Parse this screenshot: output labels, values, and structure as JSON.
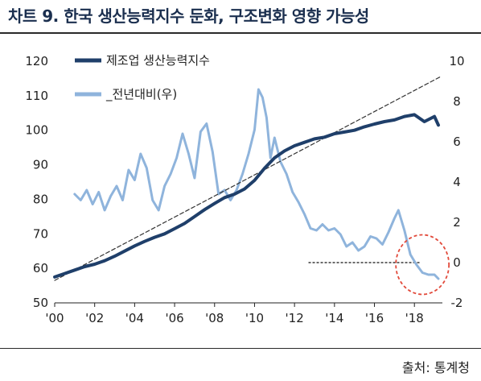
{
  "header": {
    "title": "차트 9. 한국 생산능력지수 둔화, 구조변화 영향 가능성"
  },
  "footer": {
    "source": "출처: 통계청"
  },
  "colors": {
    "index": "#1f3f6a",
    "yoy": "#8fb4dc",
    "trend": "#333333",
    "circle": "#e24a3b",
    "zero_line": "#111111"
  },
  "chart_data": {
    "type": "line",
    "title": "",
    "xlabel": "",
    "ylabel": "",
    "x_ticks": [
      "'00",
      "'02",
      "'04",
      "'06",
      "'08",
      "'10",
      "'12",
      "'14",
      "'16",
      "'18"
    ],
    "xlim": [
      2000,
      2019.4
    ],
    "ylim_left": [
      50,
      120
    ],
    "ylim_right": [
      -2,
      10
    ],
    "left_ticks": [
      "120",
      "110",
      "100",
      "90",
      "80",
      "70",
      "60",
      "50"
    ],
    "right_ticks": [
      "10",
      "8",
      "6",
      "4",
      "2",
      "0",
      "-2"
    ],
    "legend_position": "top-left",
    "annotations": [
      "dashed linear trend line",
      "dashed zero reference line (2012.7–2018.3)",
      "red dashed circle highlighting 2018–2019"
    ],
    "series": [
      {
        "name": "제조업 생산능력지수",
        "axis": "left",
        "x": [
          2000.0,
          2000.5,
          2001.0,
          2001.5,
          2002.0,
          2002.5,
          2003.0,
          2003.5,
          2004.0,
          2004.5,
          2005.0,
          2005.5,
          2006.0,
          2006.5,
          2007.0,
          2007.5,
          2008.0,
          2008.5,
          2009.0,
          2009.5,
          2010.0,
          2010.5,
          2011.0,
          2011.5,
          2012.0,
          2012.5,
          2013.0,
          2013.5,
          2014.0,
          2014.5,
          2015.0,
          2015.5,
          2016.0,
          2016.5,
          2017.0,
          2017.5,
          2018.0,
          2018.5,
          2019.0,
          2019.2
        ],
        "y": [
          57.5,
          58.5,
          59.5,
          60.5,
          61.2,
          62.2,
          63.5,
          65.0,
          66.5,
          67.8,
          69.0,
          70.0,
          71.5,
          73.0,
          75.0,
          77.0,
          78.8,
          80.5,
          81.5,
          83.0,
          85.5,
          89.0,
          92.0,
          94.0,
          95.5,
          96.5,
          97.5,
          98.0,
          99.0,
          99.5,
          100.0,
          101.0,
          101.8,
          102.5,
          103.0,
          104.0,
          104.5,
          102.5,
          104.0,
          101.5
        ]
      },
      {
        "name": "_전년대비(우)",
        "axis": "right",
        "x": [
          2001.0,
          2001.3,
          2001.6,
          2001.9,
          2002.2,
          2002.5,
          2002.8,
          2003.1,
          2003.4,
          2003.7,
          2004.0,
          2004.3,
          2004.6,
          2004.9,
          2005.2,
          2005.5,
          2005.8,
          2006.1,
          2006.4,
          2006.7,
          2007.0,
          2007.3,
          2007.6,
          2007.9,
          2008.2,
          2008.5,
          2008.8,
          2009.1,
          2009.4,
          2009.7,
          2010.0,
          2010.2,
          2010.4,
          2010.6,
          2010.8,
          2011.0,
          2011.3,
          2011.6,
          2011.9,
          2012.2,
          2012.5,
          2012.8,
          2013.1,
          2013.4,
          2013.7,
          2014.0,
          2014.3,
          2014.6,
          2014.9,
          2015.2,
          2015.5,
          2015.8,
          2016.1,
          2016.4,
          2016.7,
          2017.0,
          2017.2,
          2017.5,
          2017.8,
          2018.1,
          2018.4,
          2018.7,
          2019.0,
          2019.2
        ],
        "y": [
          3.4,
          3.1,
          3.6,
          2.9,
          3.5,
          2.6,
          3.3,
          3.8,
          3.1,
          4.6,
          4.1,
          5.4,
          4.7,
          3.1,
          2.6,
          3.8,
          4.4,
          5.2,
          6.4,
          5.4,
          4.2,
          6.5,
          6.9,
          5.5,
          3.4,
          3.6,
          3.1,
          3.6,
          4.4,
          5.4,
          6.6,
          8.6,
          8.2,
          7.2,
          5.2,
          6.2,
          5.0,
          4.4,
          3.5,
          3.0,
          2.4,
          1.7,
          1.6,
          1.9,
          1.6,
          1.7,
          1.4,
          0.8,
          1.0,
          0.6,
          0.8,
          1.3,
          1.2,
          0.9,
          1.5,
          2.2,
          2.6,
          1.6,
          0.4,
          -0.1,
          -0.5,
          -0.6,
          -0.6,
          -0.8
        ]
      },
      {
        "name": "trend",
        "axis": "left",
        "style": "dashed",
        "x": [
          2000.0,
          2019.3
        ],
        "y": [
          56.5,
          115.5
        ]
      }
    ]
  }
}
